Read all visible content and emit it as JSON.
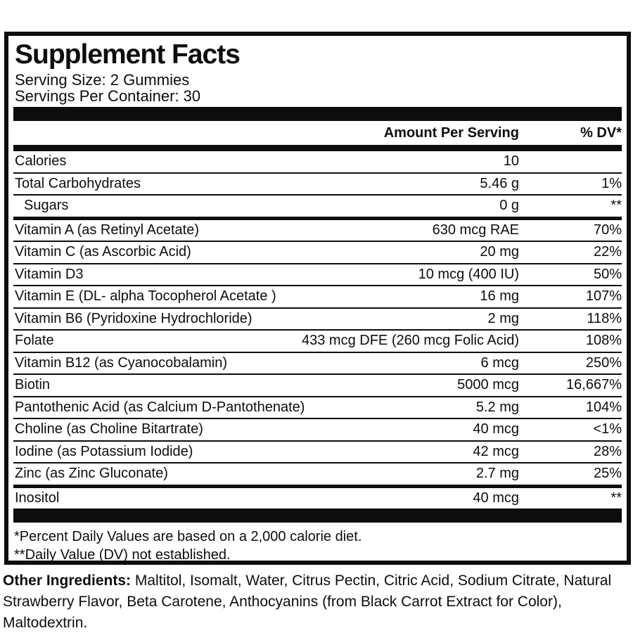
{
  "colors": {
    "ink": "#0d0d0d",
    "background": "#ffffff"
  },
  "panel": {
    "title": "Supplement Facts",
    "serving_size": "Serving Size: 2 Gummies",
    "servings_per_container": "Servings Per Container: 30",
    "header": {
      "amount_label": "Amount Per Serving",
      "dv_label": "% DV*"
    },
    "rows": [
      {
        "label": "Calories",
        "amount": "10",
        "dv": ""
      },
      {
        "label": "Total Carbohydrates",
        "amount": "5.46 g",
        "dv": "1%"
      },
      {
        "label": "Sugars",
        "amount": "0 g",
        "dv": "**"
      },
      {
        "label": "Vitamin A (as Retinyl Acetate)",
        "amount": "630 mcg RAE",
        "dv": "70%"
      },
      {
        "label": "Vitamin C (as Ascorbic Acid)",
        "amount": "20 mg",
        "dv": "22%"
      },
      {
        "label": "Vitamin D3",
        "amount": "10 mcg (400 IU)",
        "dv": "50%"
      },
      {
        "label": "Vitamin E (DL- alpha Tocopherol Acetate )",
        "amount": "16 mg",
        "dv": "107%"
      },
      {
        "label": "Vitamin B6 (Pyridoxine Hydrochloride)",
        "amount": "2 mg",
        "dv": "118%"
      },
      {
        "label": "Folate",
        "amount": "433 mcg DFE (260 mcg Folic Acid)",
        "dv": "108%"
      },
      {
        "label": "Vitamin B12 (as Cyanocobalamin)",
        "amount": "6 mcg",
        "dv": "250%"
      },
      {
        "label": "Biotin",
        "amount": "5000 mcg",
        "dv": "16,667%"
      },
      {
        "label": "Pantothenic Acid (as Calcium D-Pantothenate)",
        "amount": "5.2 mg",
        "dv": "104%"
      },
      {
        "label": "Choline (as Choline Bitartrate)",
        "amount": "40 mcg",
        "dv": "<1%"
      },
      {
        "label": "Iodine (as Potassium Iodide)",
        "amount": "42 mcg",
        "dv": "28%"
      },
      {
        "label": "Zinc (as Zinc Gluconate)",
        "amount": "2.7 mg",
        "dv": "25%"
      },
      {
        "label": "Inositol",
        "amount": "40 mcg",
        "dv": "**"
      }
    ],
    "footnotes": [
      "*Percent Daily Values are based on a 2,000 calorie diet.",
      "**Daily Value (DV) not established."
    ]
  },
  "other_ingredients": {
    "label": "Other Ingredients:",
    "text": " Maltitol, Isomalt, Water, Citrus Pectin, Citric Acid, Sodium Citrate, Natural Strawberry Flavor, Beta Carotene, Anthocyanins (from Black Carrot Extract for Color), Maltodextrin."
  }
}
